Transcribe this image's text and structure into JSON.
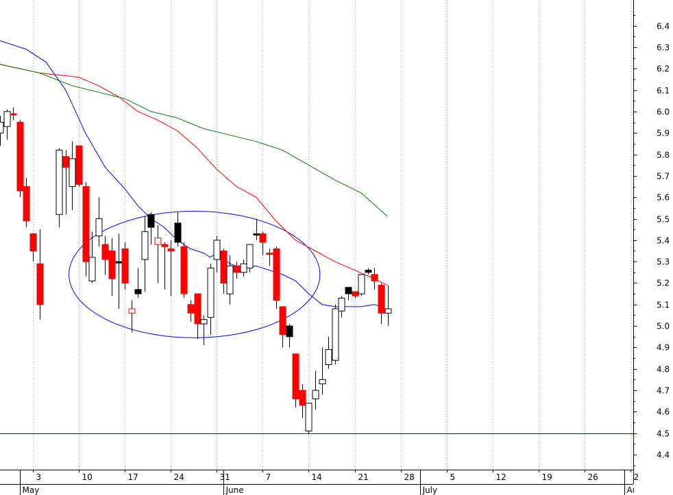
{
  "chart_data": {
    "type": "candlestick",
    "x_ticks": [
      {
        "label": "3",
        "day": 2
      },
      {
        "label": "10",
        "day": 9
      },
      {
        "label": "17",
        "day": 16
      },
      {
        "label": "24",
        "day": 23
      },
      {
        "label": "31",
        "day": 30
      },
      {
        "label": "7",
        "day": 37
      },
      {
        "label": "14",
        "day": 44
      },
      {
        "label": "21",
        "day": 51
      },
      {
        "label": "28",
        "day": 58
      },
      {
        "label": "5",
        "day": 65
      },
      {
        "label": "12",
        "day": 72
      },
      {
        "label": "19",
        "day": 79
      },
      {
        "label": "26",
        "day": 86
      },
      {
        "label": "2",
        "day": 93
      }
    ],
    "months": [
      {
        "label": "May",
        "day": 0
      },
      {
        "label": "June",
        "day": 31
      },
      {
        "label": "July",
        "day": 61
      },
      {
        "label": "Aug",
        "day": 92
      }
    ],
    "y_ticks": [
      6.4,
      6.3,
      6.2,
      6.1,
      6.0,
      5.9,
      5.8,
      5.7,
      5.6,
      5.5,
      5.4,
      5.3,
      5.2,
      5.1,
      5.0,
      4.9,
      4.8,
      4.7,
      4.6,
      4.5,
      4.4
    ],
    "ylim": [
      4.33,
      6.52
    ],
    "xlim": [
      -3,
      93.4
    ],
    "grid": "vertical dotted",
    "candles": [
      {
        "day": -3,
        "open": 5.9,
        "high": 5.98,
        "low": 5.84,
        "close": 5.95,
        "fill": "white"
      },
      {
        "day": -2,
        "open": 5.93,
        "high": 6.01,
        "low": 5.87,
        "close": 6.0,
        "fill": "white"
      },
      {
        "day": -1,
        "open": 5.99,
        "high": 6.02,
        "low": 5.96,
        "close": 5.99,
        "fill": "red"
      },
      {
        "day": 0,
        "open": 5.95,
        "high": 5.96,
        "low": 5.6,
        "close": 5.63,
        "fill": "red"
      },
      {
        "day": 1,
        "open": 5.65,
        "high": 5.69,
        "low": 5.46,
        "close": 5.49,
        "fill": "red"
      },
      {
        "day": 2,
        "open": 5.43,
        "high": 5.43,
        "low": 5.3,
        "close": 5.35,
        "fill": "red"
      },
      {
        "day": 3,
        "open": 5.29,
        "high": 5.45,
        "low": 5.03,
        "close": 5.1,
        "fill": "red"
      },
      {
        "day": 6,
        "open": 5.52,
        "high": 5.83,
        "low": 5.46,
        "close": 5.82,
        "fill": "white"
      },
      {
        "day": 7,
        "open": 5.79,
        "high": 5.82,
        "low": 5.52,
        "close": 5.74,
        "fill": "red"
      },
      {
        "day": 8,
        "open": 5.65,
        "high": 5.86,
        "low": 5.54,
        "close": 5.78,
        "fill": "white"
      },
      {
        "day": 9,
        "open": 5.84,
        "high": 5.84,
        "low": 5.65,
        "close": 5.66,
        "fill": "red"
      },
      {
        "day": 10,
        "open": 5.65,
        "high": 5.67,
        "low": 5.23,
        "close": 5.3,
        "fill": "red"
      },
      {
        "day": 11,
        "open": 5.21,
        "high": 5.44,
        "low": 5.2,
        "close": 5.32,
        "fill": "white"
      },
      {
        "day": 12,
        "open": 5.42,
        "high": 5.6,
        "low": 5.37,
        "close": 5.5,
        "fill": "white"
      },
      {
        "day": 13,
        "open": 5.38,
        "high": 5.42,
        "low": 5.24,
        "close": 5.31,
        "fill": "red"
      },
      {
        "day": 14,
        "open": 5.35,
        "high": 5.41,
        "low": 5.14,
        "close": 5.22,
        "fill": "red"
      },
      {
        "day": 15,
        "open": 5.3,
        "high": 5.43,
        "low": 5.08,
        "close": 5.3,
        "fill": "black"
      },
      {
        "day": 16,
        "open": 5.36,
        "high": 5.39,
        "low": 5.17,
        "close": 5.2,
        "fill": "red"
      },
      {
        "day": 17,
        "open": 5.06,
        "high": 5.12,
        "low": 4.97,
        "close": 5.08,
        "fill": "redhollow"
      },
      {
        "day": 18,
        "open": 5.15,
        "high": 5.27,
        "low": 5.13,
        "close": 5.17,
        "fill": "black"
      },
      {
        "day": 19,
        "open": 5.31,
        "high": 5.51,
        "low": 5.16,
        "close": 5.44,
        "fill": "white"
      },
      {
        "day": 20,
        "open": 5.46,
        "high": 5.53,
        "low": 5.38,
        "close": 5.52,
        "fill": "black"
      },
      {
        "day": 21,
        "open": 5.38,
        "high": 5.47,
        "low": 5.2,
        "close": 5.41,
        "fill": "redhollow"
      },
      {
        "day": 22,
        "open": 5.38,
        "high": 5.39,
        "low": 5.17,
        "close": 5.37,
        "fill": "red"
      },
      {
        "day": 23,
        "open": 5.36,
        "high": 5.4,
        "low": 5.14,
        "close": 5.35,
        "fill": "red"
      },
      {
        "day": 24,
        "open": 5.39,
        "high": 5.53,
        "low": 5.37,
        "close": 5.48,
        "fill": "black"
      },
      {
        "day": 25,
        "open": 5.37,
        "high": 5.39,
        "low": 5.13,
        "close": 5.15,
        "fill": "red"
      },
      {
        "day": 26,
        "open": 5.1,
        "high": 5.12,
        "low": 5.02,
        "close": 5.06,
        "fill": "red"
      },
      {
        "day": 27,
        "open": 5.15,
        "high": 5.15,
        "low": 4.94,
        "close": 5.01,
        "fill": "red"
      },
      {
        "day": 28,
        "open": 5.01,
        "high": 5.05,
        "low": 4.91,
        "close": 5.03,
        "fill": "white"
      },
      {
        "day": 29,
        "open": 5.04,
        "high": 5.29,
        "low": 4.96,
        "close": 5.27,
        "fill": "white"
      },
      {
        "day": 30,
        "open": 5.31,
        "high": 5.42,
        "low": 5.25,
        "close": 5.4,
        "fill": "white"
      },
      {
        "day": 31,
        "open": 5.35,
        "high": 5.36,
        "low": 5.15,
        "close": 5.2,
        "fill": "red"
      },
      {
        "day": 32,
        "open": 5.15,
        "high": 5.33,
        "low": 5.1,
        "close": 5.28,
        "fill": "white"
      },
      {
        "day": 33,
        "open": 5.28,
        "high": 5.3,
        "low": 5.22,
        "close": 5.25,
        "fill": "red"
      },
      {
        "day": 34,
        "open": 5.25,
        "high": 5.31,
        "low": 5.23,
        "close": 5.29,
        "fill": "white"
      },
      {
        "day": 35,
        "open": 5.27,
        "high": 5.38,
        "low": 5.25,
        "close": 5.38,
        "fill": "white"
      },
      {
        "day": 36,
        "open": 5.43,
        "high": 5.5,
        "low": 5.4,
        "close": 5.43,
        "fill": "black"
      },
      {
        "day": 37,
        "open": 5.43,
        "high": 5.44,
        "low": 5.33,
        "close": 5.39,
        "fill": "red"
      },
      {
        "day": 38,
        "open": 5.34,
        "high": 5.36,
        "low": 5.28,
        "close": 5.34,
        "fill": "red"
      },
      {
        "day": 39,
        "open": 5.36,
        "high": 5.37,
        "low": 5.08,
        "close": 5.12,
        "fill": "red"
      },
      {
        "day": 40,
        "open": 5.09,
        "high": 5.09,
        "low": 4.9,
        "close": 4.96,
        "fill": "red"
      },
      {
        "day": 41,
        "open": 5.0,
        "high": 5.01,
        "low": 4.9,
        "close": 4.95,
        "fill": "black"
      },
      {
        "day": 42,
        "open": 4.87,
        "high": 4.87,
        "low": 4.62,
        "close": 4.66,
        "fill": "red"
      },
      {
        "day": 43,
        "open": 4.7,
        "high": 4.73,
        "low": 4.57,
        "close": 4.63,
        "fill": "red"
      },
      {
        "day": 44,
        "open": 4.51,
        "high": 4.64,
        "low": 4.5,
        "close": 4.64,
        "fill": "white"
      },
      {
        "day": 45,
        "open": 4.66,
        "high": 4.79,
        "low": 4.61,
        "close": 4.7,
        "fill": "white"
      },
      {
        "day": 46,
        "open": 4.73,
        "high": 4.9,
        "low": 4.68,
        "close": 4.75,
        "fill": "white"
      },
      {
        "day": 47,
        "open": 4.82,
        "high": 4.95,
        "low": 4.8,
        "close": 4.89,
        "fill": "white"
      },
      {
        "day": 48,
        "open": 4.84,
        "high": 5.1,
        "low": 4.82,
        "close": 5.08,
        "fill": "white"
      },
      {
        "day": 49,
        "open": 5.07,
        "high": 5.14,
        "low": 5.04,
        "close": 5.13,
        "fill": "white"
      },
      {
        "day": 50,
        "open": 5.15,
        "high": 5.18,
        "low": 5.12,
        "close": 5.18,
        "fill": "black"
      },
      {
        "day": 51,
        "open": 5.16,
        "high": 5.16,
        "low": 5.13,
        "close": 5.14,
        "fill": "red"
      },
      {
        "day": 52,
        "open": 5.15,
        "high": 5.24,
        "low": 5.14,
        "close": 5.24,
        "fill": "white"
      },
      {
        "day": 53,
        "open": 5.26,
        "high": 5.27,
        "low": 5.24,
        "close": 5.25,
        "fill": "black"
      },
      {
        "day": 54,
        "open": 5.24,
        "high": 5.27,
        "low": 5.17,
        "close": 5.21,
        "fill": "red"
      },
      {
        "day": 55,
        "open": 5.19,
        "high": 5.2,
        "low": 5.01,
        "close": 5.06,
        "fill": "red"
      },
      {
        "day": 56,
        "open": 5.06,
        "high": 5.19,
        "low": 5.0,
        "close": 5.08,
        "fill": "white"
      }
    ],
    "overlays": [
      {
        "color": "#0000ff",
        "points": [
          [
            -3,
            6.33
          ],
          [
            1,
            6.29
          ],
          [
            4,
            6.23
          ],
          [
            7,
            6.1
          ],
          [
            10,
            5.9
          ],
          [
            13,
            5.74
          ],
          [
            16,
            5.64
          ],
          [
            18,
            5.56
          ],
          [
            20,
            5.5
          ],
          [
            22,
            5.46
          ],
          [
            24,
            5.4
          ],
          [
            26,
            5.36
          ],
          [
            28,
            5.34
          ],
          [
            29,
            5.32
          ],
          [
            30,
            5.34
          ],
          [
            32,
            5.29
          ],
          [
            34,
            5.27
          ],
          [
            36,
            5.28
          ],
          [
            38,
            5.26
          ],
          [
            40,
            5.24
          ],
          [
            42,
            5.21
          ],
          [
            44,
            5.15
          ],
          [
            46,
            5.1
          ],
          [
            48,
            5.09
          ],
          [
            50,
            5.09
          ],
          [
            52,
            5.09
          ],
          [
            54,
            5.1
          ],
          [
            55,
            5.09
          ],
          [
            56,
            5.07
          ]
        ]
      },
      {
        "color": "#ff0000",
        "points": [
          [
            -3,
            6.22
          ],
          [
            3,
            6.18
          ],
          [
            6,
            6.17
          ],
          [
            9,
            6.16
          ],
          [
            12,
            6.12
          ],
          [
            15,
            6.07
          ],
          [
            18,
            6.0
          ],
          [
            21,
            5.96
          ],
          [
            24,
            5.91
          ],
          [
            27,
            5.83
          ],
          [
            30,
            5.73
          ],
          [
            33,
            5.65
          ],
          [
            36,
            5.6
          ],
          [
            39,
            5.49
          ],
          [
            42,
            5.4
          ],
          [
            45,
            5.35
          ],
          [
            48,
            5.3
          ],
          [
            51,
            5.26
          ],
          [
            54,
            5.22
          ],
          [
            56,
            5.19
          ]
        ]
      },
      {
        "color": "#008000",
        "points": [
          [
            -3,
            6.22
          ],
          [
            3,
            6.18
          ],
          [
            8,
            6.12
          ],
          [
            12,
            6.09
          ],
          [
            16,
            6.06
          ],
          [
            20,
            6.0
          ],
          [
            24,
            5.97
          ],
          [
            28,
            5.92
          ],
          [
            32,
            5.89
          ],
          [
            36,
            5.86
          ],
          [
            40,
            5.82
          ],
          [
            44,
            5.75
          ],
          [
            48,
            5.68
          ],
          [
            52,
            5.62
          ],
          [
            56,
            5.51
          ]
        ]
      }
    ],
    "annotations": [
      {
        "type": "ellipse",
        "color": "#0000ff",
        "cx_day": 26.6,
        "cy": 5.24,
        "rx_days": 19.1,
        "ry": 0.295
      },
      {
        "type": "hline",
        "color": "#0000ff",
        "y": 4.5
      }
    ]
  }
}
